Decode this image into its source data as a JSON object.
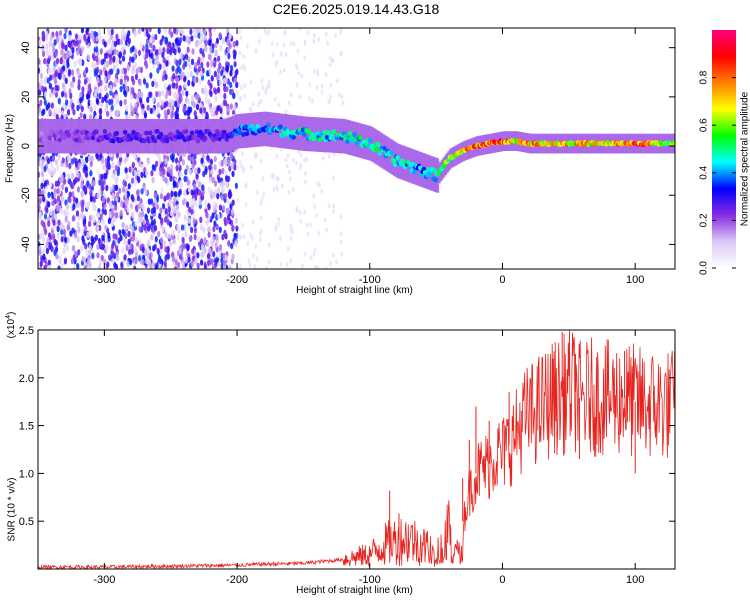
{
  "title": "C2E6.2025.019.14.43.G18",
  "colors": {
    "snr_line": "#e8231e",
    "axis": "#000000",
    "background": "#ffffff"
  },
  "chart_data": [
    {
      "type": "heatmap",
      "panel": "top",
      "xlabel": "Height of straight line (km)",
      "ylabel": "Frequency (Hz)",
      "xlim": [
        -350,
        130
      ],
      "ylim": [
        -50,
        48
      ],
      "x_ticks": [
        -300,
        -200,
        -100,
        0,
        100
      ],
      "y_ticks": [
        -40,
        -20,
        0,
        20,
        40
      ],
      "colorbar": {
        "label": "Normalized spectral amplitude",
        "range": [
          0.0,
          1.0
        ],
        "ticks": [
          0.0,
          0.2,
          0.4,
          0.6,
          0.8
        ],
        "tick_labels": [
          "0.0",
          "0.2",
          "0.4",
          "0.6",
          "0.8"
        ],
        "colormap": [
          "#ffffff",
          "#d9c7f5",
          "#8a2be2",
          "#0000ff",
          "#00ffff",
          "#00ff00",
          "#ffff00",
          "#ff8000",
          "#ff0000",
          "#ff0080"
        ]
      },
      "ridge": {
        "x": [
          -350,
          -300,
          -250,
          -210,
          -200,
          -180,
          -150,
          -120,
          -100,
          -80,
          -60,
          -50,
          -40,
          -30,
          -20,
          -10,
          0,
          10,
          20,
          40,
          60,
          80,
          100,
          130
        ],
        "y": [
          4,
          4,
          4,
          4,
          6,
          7,
          5,
          4,
          1,
          -6,
          -10,
          -12,
          -5,
          -2,
          0,
          1,
          2,
          2,
          1,
          1,
          1,
          1,
          1,
          1
        ],
        "peak_amplitude": [
          0.2,
          0.3,
          0.3,
          0.3,
          0.4,
          0.45,
          0.5,
          0.5,
          0.55,
          0.5,
          0.45,
          0.5,
          0.7,
          0.8,
          0.9,
          0.95,
          0.9,
          0.75,
          0.85,
          0.8,
          0.8,
          0.75,
          0.95,
          0.6
        ]
      },
      "noise_region": {
        "x_range": [
          -350,
          -200
        ],
        "description_level": 0.2
      }
    },
    {
      "type": "line",
      "panel": "bottom",
      "xlabel": "Height of straight line (km)",
      "ylabel": "SNR (10 * v/v)",
      "y_multiplier_label": "(x10",
      "y_multiplier_exp": "4",
      "y_multiplier_close": ")",
      "xlim": [
        -350,
        130
      ],
      "ylim": [
        0,
        2.5
      ],
      "x_ticks": [
        -300,
        -200,
        -100,
        0,
        100
      ],
      "y_ticks": [
        0.5,
        1.0,
        1.5,
        2.0,
        2.5
      ],
      "y_tick_labels": [
        "0.5",
        "1.0",
        "1.5",
        "2.0",
        "2.5"
      ],
      "series": [
        {
          "x": [
            -350,
            -300,
            -250,
            -200,
            -180,
            -150,
            -120,
            -100,
            -90,
            -80,
            -70,
            -60,
            -50,
            -40,
            -35,
            -30,
            -25,
            -20,
            -15,
            -10,
            -5,
            0,
            5,
            10,
            15,
            20,
            25,
            30,
            35,
            40,
            45,
            50,
            55,
            60,
            65,
            70,
            80,
            90,
            100,
            110,
            120,
            130
          ],
          "values": [
            0.02,
            0.02,
            0.03,
            0.04,
            0.05,
            0.06,
            0.1,
            0.15,
            0.25,
            0.3,
            0.32,
            0.25,
            0.2,
            0.4,
            0.15,
            0.5,
            0.8,
            1.0,
            1.05,
            1.1,
            1.2,
            1.2,
            1.3,
            1.4,
            1.55,
            1.6,
            1.65,
            1.7,
            1.75,
            1.8,
            1.8,
            1.9,
            1.85,
            1.75,
            1.8,
            1.8,
            1.78,
            1.8,
            1.75,
            1.72,
            1.72,
            1.72
          ]
        }
      ],
      "spikes": [
        {
          "x": -85,
          "y": 0.82
        },
        {
          "x": -78,
          "y": 0.58
        },
        {
          "x": -30,
          "y": 0.95
        },
        {
          "x": -25,
          "y": 1.35
        },
        {
          "x": -20,
          "y": 1.7
        },
        {
          "x": -10,
          "y": 1.55
        },
        {
          "x": 5,
          "y": 1.85
        },
        {
          "x": 38,
          "y": 2.2
        },
        {
          "x": 45,
          "y": 2.48
        },
        {
          "x": 55,
          "y": 2.25
        },
        {
          "x": 58,
          "y": 1.15
        },
        {
          "x": 92,
          "y": 2.28
        },
        {
          "x": 98,
          "y": 2.05
        },
        {
          "x": 100,
          "y": 1.0
        }
      ]
    }
  ]
}
